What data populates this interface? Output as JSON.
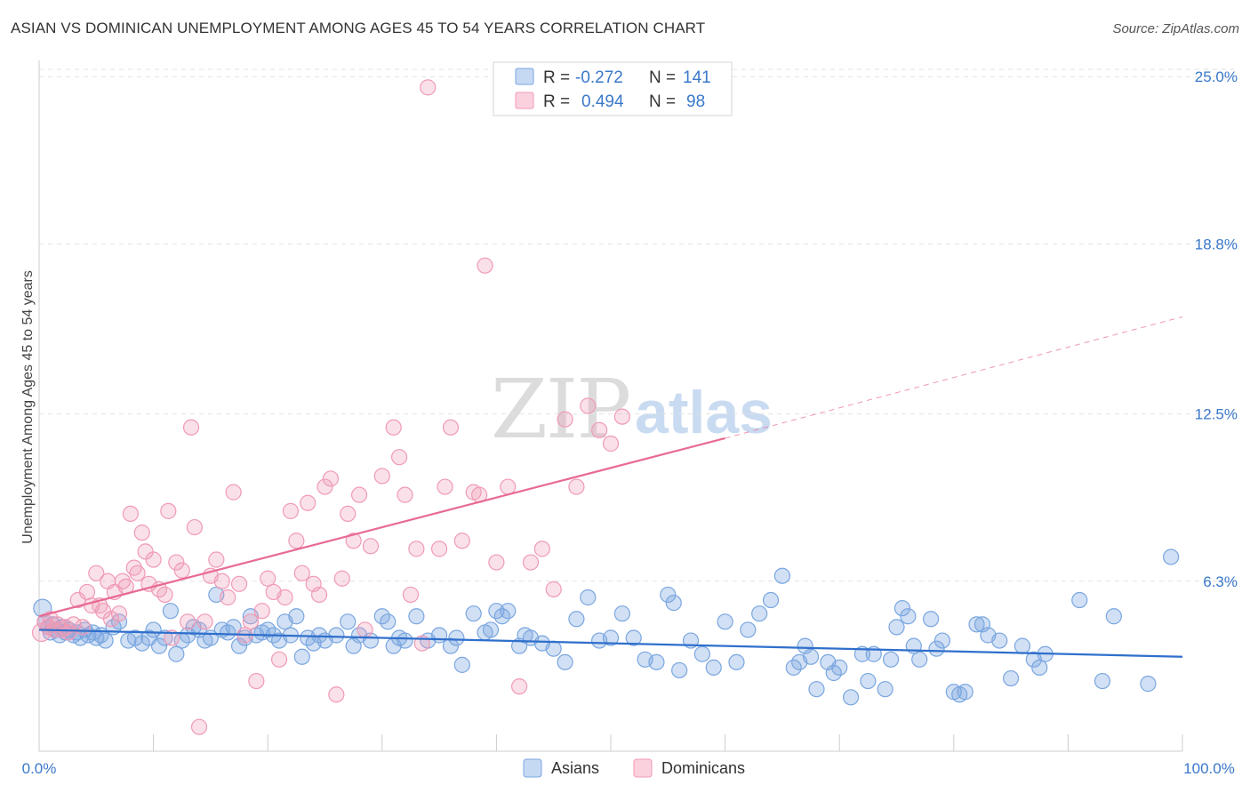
{
  "title": "ASIAN VS DOMINICAN UNEMPLOYMENT AMONG AGES 45 TO 54 YEARS CORRELATION CHART",
  "source": "Source: ZipAtlas.com",
  "watermark": {
    "part1": "ZIP",
    "part2": "atlas"
  },
  "legend": {
    "rows": [
      {
        "r_label": "R =",
        "r_value": "-0.272",
        "n_label": "N =",
        "n_value": "141",
        "color": "#7aa6e0"
      },
      {
        "r_label": "R =",
        "r_value": "0.494",
        "n_label": "N =",
        "n_value": "98",
        "color": "#f09ab6"
      }
    ]
  },
  "bottom_legend": [
    {
      "label": "Asians",
      "color": "#7aa6e0"
    },
    {
      "label": "Dominicans",
      "color": "#f09ab6"
    }
  ],
  "chart_data": {
    "type": "scatter",
    "title": "ASIAN VS DOMINICAN UNEMPLOYMENT AMONG AGES 45 TO 54 YEARS CORRELATION CHART",
    "xlabel": "",
    "ylabel": "Unemployment Among Ages 45 to 54 years",
    "xlim": [
      0,
      100
    ],
    "ylim": [
      0,
      25.6
    ],
    "x_tick_labels": [
      "0.0%",
      "100.0%"
    ],
    "y_ticks": [
      6.3,
      12.5,
      18.8,
      25.0
    ],
    "y_tick_labels": [
      "6.3%",
      "12.5%",
      "18.8%",
      "25.0%"
    ],
    "grid": true,
    "legend_position": "top-center",
    "series": [
      {
        "name": "Asians",
        "color": "#7aa6e0",
        "line_color": "#2f6fcc",
        "trend": {
          "x0": 0,
          "y0": 4.5,
          "x1": 100,
          "y1": 3.5
        },
        "points": [
          [
            0.3,
            5.3
          ],
          [
            0.5,
            4.8
          ],
          [
            0.8,
            4.6
          ],
          [
            1,
            4.4
          ],
          [
            1.2,
            4.7
          ],
          [
            1.5,
            4.5
          ],
          [
            1.8,
            4.3
          ],
          [
            2,
            4.6
          ],
          [
            2.3,
            4.4
          ],
          [
            2.6,
            4.5
          ],
          [
            3,
            4.3
          ],
          [
            3.3,
            4.4
          ],
          [
            3.6,
            4.2
          ],
          [
            4,
            4.5
          ],
          [
            4.3,
            4.3
          ],
          [
            4.7,
            4.4
          ],
          [
            5,
            4.2
          ],
          [
            5.4,
            4.3
          ],
          [
            5.8,
            4.1
          ],
          [
            6.5,
            4.6
          ],
          [
            7,
            4.8
          ],
          [
            7.8,
            4.1
          ],
          [
            8.4,
            4.2
          ],
          [
            9,
            4.0
          ],
          [
            9.6,
            4.2
          ],
          [
            10,
            4.5
          ],
          [
            10.5,
            3.9
          ],
          [
            11,
            4.2
          ],
          [
            11.5,
            5.2
          ],
          [
            12,
            3.6
          ],
          [
            12.5,
            4.1
          ],
          [
            13,
            4.3
          ],
          [
            13.5,
            4.6
          ],
          [
            14,
            4.5
          ],
          [
            14.5,
            4.1
          ],
          [
            15,
            4.2
          ],
          [
            15.5,
            5.8
          ],
          [
            16,
            4.5
          ],
          [
            16.5,
            4.4
          ],
          [
            17,
            4.6
          ],
          [
            17.5,
            3.9
          ],
          [
            18,
            4.2
          ],
          [
            18.5,
            5.0
          ],
          [
            19,
            4.3
          ],
          [
            19.5,
            4.4
          ],
          [
            20,
            4.5
          ],
          [
            20.5,
            4.3
          ],
          [
            21,
            4.1
          ],
          [
            21.5,
            4.8
          ],
          [
            22,
            4.3
          ],
          [
            22.5,
            5.0
          ],
          [
            23,
            3.5
          ],
          [
            23.5,
            4.2
          ],
          [
            24,
            4.0
          ],
          [
            24.5,
            4.3
          ],
          [
            25,
            4.1
          ],
          [
            26,
            4.3
          ],
          [
            27,
            4.8
          ],
          [
            27.5,
            3.9
          ],
          [
            28,
            4.3
          ],
          [
            29,
            4.1
          ],
          [
            30,
            5.0
          ],
          [
            30.5,
            4.8
          ],
          [
            31,
            3.9
          ],
          [
            31.5,
            4.2
          ],
          [
            32,
            4.1
          ],
          [
            33,
            5.0
          ],
          [
            34,
            4.1
          ],
          [
            35,
            4.3
          ],
          [
            36,
            3.9
          ],
          [
            36.5,
            4.2
          ],
          [
            37,
            3.2
          ],
          [
            38,
            5.1
          ],
          [
            39,
            4.4
          ],
          [
            39.5,
            4.5
          ],
          [
            40,
            5.2
          ],
          [
            40.5,
            5.0
          ],
          [
            41,
            5.2
          ],
          [
            42,
            3.9
          ],
          [
            42.5,
            4.3
          ],
          [
            43,
            4.2
          ],
          [
            44,
            4.0
          ],
          [
            45,
            3.8
          ],
          [
            46,
            3.3
          ],
          [
            47,
            4.9
          ],
          [
            48,
            5.7
          ],
          [
            49,
            4.1
          ],
          [
            50,
            4.2
          ],
          [
            51,
            5.1
          ],
          [
            52,
            4.2
          ],
          [
            53,
            3.4
          ],
          [
            54,
            3.3
          ],
          [
            55,
            5.8
          ],
          [
            55.5,
            5.5
          ],
          [
            56,
            3.0
          ],
          [
            57,
            4.1
          ],
          [
            58,
            3.6
          ],
          [
            59,
            3.1
          ],
          [
            60,
            4.8
          ],
          [
            61,
            3.3
          ],
          [
            62,
            4.5
          ],
          [
            63,
            5.1
          ],
          [
            64,
            5.6
          ],
          [
            65,
            6.5
          ],
          [
            66,
            3.1
          ],
          [
            66.5,
            3.3
          ],
          [
            67,
            3.9
          ],
          [
            67.5,
            3.5
          ],
          [
            68,
            2.3
          ],
          [
            69,
            3.3
          ],
          [
            69.5,
            2.9
          ],
          [
            70,
            3.1
          ],
          [
            71,
            2.0
          ],
          [
            72,
            3.6
          ],
          [
            72.5,
            2.6
          ],
          [
            73,
            3.6
          ],
          [
            74,
            2.3
          ],
          [
            74.5,
            3.4
          ],
          [
            75,
            4.6
          ],
          [
            75.5,
            5.3
          ],
          [
            76,
            5.0
          ],
          [
            76.5,
            3.9
          ],
          [
            77,
            3.4
          ],
          [
            78,
            4.9
          ],
          [
            78.5,
            3.8
          ],
          [
            79,
            4.1
          ],
          [
            80,
            2.2
          ],
          [
            80.5,
            2.1
          ],
          [
            81,
            2.2
          ],
          [
            82,
            4.7
          ],
          [
            82.5,
            4.7
          ],
          [
            83,
            4.3
          ],
          [
            84,
            4.1
          ],
          [
            85,
            2.7
          ],
          [
            86,
            3.9
          ],
          [
            87,
            3.4
          ],
          [
            87.5,
            3.1
          ],
          [
            88,
            3.6
          ],
          [
            91,
            5.6
          ],
          [
            93,
            2.6
          ],
          [
            94,
            5.0
          ],
          [
            97,
            2.5
          ],
          [
            99,
            7.2
          ]
        ]
      },
      {
        "name": "Dominicans",
        "color": "#f09ab6",
        "line_color": "#e86a92",
        "trend": {
          "x0": 0,
          "y0": 5.0,
          "x1": 60,
          "y1": 11.6
        },
        "trend_dashed": {
          "x0": 60,
          "y0": 11.6,
          "x1": 100,
          "y1": 16.1
        },
        "points": [
          [
            0.2,
            4.4
          ],
          [
            0.5,
            4.8
          ],
          [
            0.8,
            4.6
          ],
          [
            1,
            4.9
          ],
          [
            1.3,
            4.5
          ],
          [
            1.6,
            4.7
          ],
          [
            2,
            4.5
          ],
          [
            2.3,
            4.6
          ],
          [
            2.6,
            4.4
          ],
          [
            3,
            4.7
          ],
          [
            3.4,
            5.6
          ],
          [
            3.8,
            4.6
          ],
          [
            4.2,
            5.9
          ],
          [
            4.6,
            5.4
          ],
          [
            5,
            6.6
          ],
          [
            5.3,
            5.4
          ],
          [
            5.6,
            5.2
          ],
          [
            6,
            6.3
          ],
          [
            6.3,
            4.9
          ],
          [
            6.6,
            5.9
          ],
          [
            7,
            5.1
          ],
          [
            7.3,
            6.3
          ],
          [
            7.6,
            6.1
          ],
          [
            8,
            8.8
          ],
          [
            8.3,
            6.8
          ],
          [
            8.6,
            6.6
          ],
          [
            9,
            8.1
          ],
          [
            9.3,
            7.4
          ],
          [
            9.6,
            6.2
          ],
          [
            10,
            7.1
          ],
          [
            10.5,
            6.0
          ],
          [
            11,
            5.8
          ],
          [
            11.3,
            8.9
          ],
          [
            11.6,
            4.2
          ],
          [
            12,
            7.0
          ],
          [
            12.5,
            6.7
          ],
          [
            13,
            4.8
          ],
          [
            13.3,
            12.0
          ],
          [
            13.6,
            8.3
          ],
          [
            14,
            0.9
          ],
          [
            14.5,
            4.8
          ],
          [
            15,
            6.5
          ],
          [
            15.5,
            7.1
          ],
          [
            16,
            6.3
          ],
          [
            16.5,
            5.7
          ],
          [
            17,
            9.6
          ],
          [
            17.5,
            6.2
          ],
          [
            18,
            4.3
          ],
          [
            18.5,
            4.8
          ],
          [
            19,
            2.6
          ],
          [
            19.5,
            5.2
          ],
          [
            20,
            6.4
          ],
          [
            20.5,
            5.9
          ],
          [
            21,
            3.4
          ],
          [
            21.5,
            5.7
          ],
          [
            22,
            8.9
          ],
          [
            22.5,
            7.8
          ],
          [
            23,
            6.6
          ],
          [
            23.5,
            9.2
          ],
          [
            24,
            6.2
          ],
          [
            24.5,
            5.8
          ],
          [
            25,
            9.8
          ],
          [
            25.5,
            10.1
          ],
          [
            26,
            2.1
          ],
          [
            26.5,
            6.4
          ],
          [
            27,
            8.8
          ],
          [
            27.5,
            7.8
          ],
          [
            28,
            9.5
          ],
          [
            28.5,
            4.5
          ],
          [
            29,
            7.6
          ],
          [
            30,
            10.2
          ],
          [
            31,
            12.0
          ],
          [
            31.5,
            10.9
          ],
          [
            32,
            9.5
          ],
          [
            32.5,
            5.8
          ],
          [
            33,
            7.5
          ],
          [
            33.5,
            4.0
          ],
          [
            34,
            24.6
          ],
          [
            35,
            7.5
          ],
          [
            35.5,
            9.8
          ],
          [
            36,
            12.0
          ],
          [
            37,
            7.8
          ],
          [
            38,
            9.6
          ],
          [
            38.5,
            9.5
          ],
          [
            39,
            18.0
          ],
          [
            40,
            7.0
          ],
          [
            41,
            9.8
          ],
          [
            42,
            2.4
          ],
          [
            43,
            7.0
          ],
          [
            44,
            7.5
          ],
          [
            45,
            6.0
          ],
          [
            46,
            12.3
          ],
          [
            47,
            9.8
          ],
          [
            48,
            12.8
          ],
          [
            49,
            11.9
          ],
          [
            50,
            11.4
          ],
          [
            51,
            12.4
          ]
        ]
      }
    ]
  }
}
